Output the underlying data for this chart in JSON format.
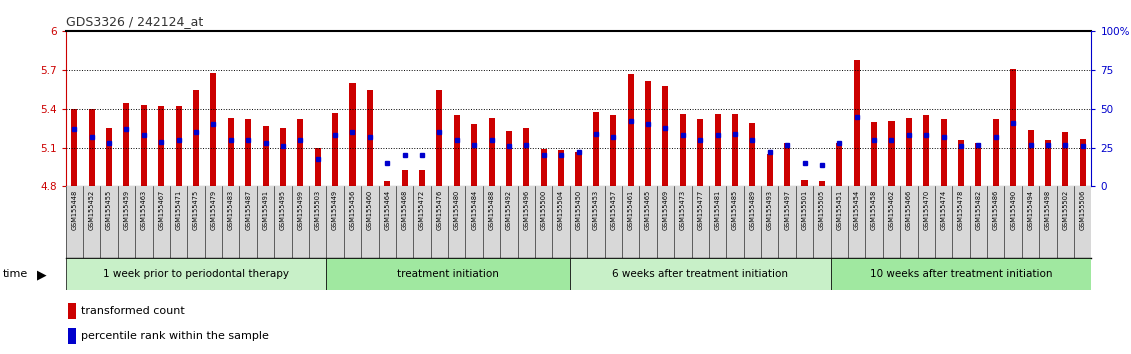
{
  "title": "GDS3326 / 242124_at",
  "ylim": [
    4.8,
    6.0
  ],
  "yticks": [
    4.8,
    5.1,
    5.4,
    5.7,
    6.0
  ],
  "ytick_labels": [
    "4.8",
    "5.1",
    "5.4",
    "5.7",
    "6"
  ],
  "dotted_lines": [
    5.1,
    5.4,
    5.7
  ],
  "right_yticks": [
    0,
    25,
    50,
    75,
    100
  ],
  "right_ytick_labels": [
    "0",
    "25",
    "50",
    "75",
    "100%"
  ],
  "samples": [
    "GSM155448",
    "GSM155452",
    "GSM155455",
    "GSM155459",
    "GSM155463",
    "GSM155467",
    "GSM155471",
    "GSM155475",
    "GSM155479",
    "GSM155483",
    "GSM155487",
    "GSM155491",
    "GSM155495",
    "GSM155499",
    "GSM155503",
    "GSM155449",
    "GSM155456",
    "GSM155460",
    "GSM155464",
    "GSM155468",
    "GSM155472",
    "GSM155476",
    "GSM155480",
    "GSM155484",
    "GSM155488",
    "GSM155492",
    "GSM155496",
    "GSM155500",
    "GSM155504",
    "GSM155450",
    "GSM155453",
    "GSM155457",
    "GSM155461",
    "GSM155465",
    "GSM155469",
    "GSM155473",
    "GSM155477",
    "GSM155481",
    "GSM155485",
    "GSM155489",
    "GSM155493",
    "GSM155497",
    "GSM155501",
    "GSM155505",
    "GSM155451",
    "GSM155454",
    "GSM155458",
    "GSM155462",
    "GSM155466",
    "GSM155470",
    "GSM155474",
    "GSM155478",
    "GSM155482",
    "GSM155486",
    "GSM155490",
    "GSM155494",
    "GSM155498",
    "GSM155502",
    "GSM155506"
  ],
  "red_values": [
    5.4,
    5.4,
    5.25,
    5.45,
    5.43,
    5.42,
    5.42,
    5.55,
    5.68,
    5.33,
    5.32,
    5.27,
    5.25,
    5.32,
    5.1,
    5.37,
    5.6,
    5.55,
    4.84,
    4.93,
    4.93,
    5.55,
    5.35,
    5.28,
    5.33,
    5.23,
    5.25,
    5.09,
    5.08,
    5.07,
    5.38,
    5.35,
    5.67,
    5.62,
    5.58,
    5.36,
    5.32,
    5.36,
    5.36,
    5.29,
    5.05,
    5.14,
    4.85,
    4.84,
    5.14,
    5.78,
    5.3,
    5.31,
    5.33,
    5.35,
    5.32,
    5.16,
    5.14,
    5.32,
    5.71,
    5.24,
    5.16,
    5.22,
    5.17
  ],
  "blue_values": [
    37,
    32,
    28,
    37,
    33,
    29,
    30,
    35,
    40,
    30,
    30,
    28,
    26,
    30,
    18,
    33,
    35,
    32,
    15,
    20,
    20,
    35,
    30,
    27,
    30,
    26,
    27,
    20,
    20,
    22,
    34,
    32,
    42,
    40,
    38,
    33,
    30,
    33,
    34,
    30,
    22,
    27,
    15,
    14,
    28,
    45,
    30,
    30,
    33,
    33,
    32,
    26,
    27,
    32,
    41,
    27,
    27,
    27,
    26
  ],
  "groups": [
    {
      "label": "1 week prior to periodontal therapy",
      "start": 0,
      "end": 15,
      "color": "#c8f0c8"
    },
    {
      "label": "treatment initiation",
      "start": 15,
      "end": 29,
      "color": "#a0e8a0"
    },
    {
      "label": "6 weeks after treatment initiation",
      "start": 29,
      "end": 44,
      "color": "#c8f0c8"
    },
    {
      "label": "10 weeks after treatment initiation",
      "start": 44,
      "end": 59,
      "color": "#a0e8a0"
    }
  ],
  "bar_color": "#cc0000",
  "blue_color": "#0000cc",
  "plot_bg": "#ffffff",
  "label_bg": "#d8d8d8",
  "title_color": "#333333",
  "left_axis_color": "#cc0000",
  "right_axis_color": "#0000cc"
}
